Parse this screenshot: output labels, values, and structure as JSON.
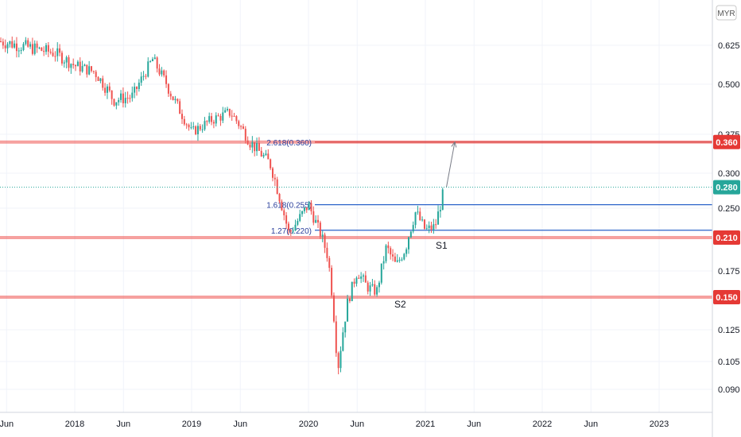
{
  "chart_data": {
    "type": "candlestick",
    "currency": "MYR",
    "x_axis_labels": [
      "Jun",
      "2018",
      "Jun",
      "2019",
      "Jun",
      "2020",
      "Jun",
      "2021",
      "Jun",
      "2022",
      "Jun",
      "2023"
    ],
    "y_axis_labels": [
      "0.625",
      "0.500",
      "0.375",
      "0.300",
      "0.250",
      "0.175",
      "0.125",
      "0.105",
      "0.090"
    ],
    "price_badges": [
      {
        "value": "0.360",
        "color": "#e53935"
      },
      {
        "value": "0.280",
        "color": "#26a69a"
      },
      {
        "value": "0.210",
        "color": "#e53935"
      },
      {
        "value": "0.150",
        "color": "#e53935"
      }
    ],
    "horizontal_levels": [
      {
        "value": 0.36,
        "kind": "resistance",
        "color": "#ef5350"
      },
      {
        "value": 0.21,
        "kind": "support",
        "color": "#ef5350"
      },
      {
        "value": 0.15,
        "kind": "support",
        "color": "#ef5350"
      }
    ],
    "fib_levels": [
      {
        "label": "2.618(0.360)",
        "value": 0.36
      },
      {
        "label": "1.618(0.255)",
        "value": 0.255
      },
      {
        "label": "1.27(0.220)",
        "value": 0.22
      }
    ],
    "last_price": 0.28,
    "annotations": [
      "S1",
      "S2"
    ],
    "close_path": [
      {
        "date": "2017-05",
        "close": 0.64
      },
      {
        "date": "2017-08",
        "close": 0.62
      },
      {
        "date": "2017-11",
        "close": 0.6
      },
      {
        "date": "2018-01",
        "close": 0.56
      },
      {
        "date": "2018-03",
        "close": 0.54
      },
      {
        "date": "2018-05",
        "close": 0.46
      },
      {
        "date": "2018-07",
        "close": 0.47
      },
      {
        "date": "2018-09",
        "close": 0.58
      },
      {
        "date": "2018-11",
        "close": 0.47
      },
      {
        "date": "2019-01",
        "close": 0.38
      },
      {
        "date": "2019-03",
        "close": 0.41
      },
      {
        "date": "2019-05",
        "close": 0.43
      },
      {
        "date": "2019-07",
        "close": 0.36
      },
      {
        "date": "2019-09",
        "close": 0.32
      },
      {
        "date": "2019-11",
        "close": 0.215
      },
      {
        "date": "2020-01",
        "close": 0.255
      },
      {
        "date": "2020-03",
        "close": 0.19
      },
      {
        "date": "2020-04",
        "close": 0.1
      },
      {
        "date": "2020-05",
        "close": 0.145
      },
      {
        "date": "2020-06",
        "close": 0.175
      },
      {
        "date": "2020-07",
        "close": 0.16
      },
      {
        "date": "2020-08",
        "close": 0.155
      },
      {
        "date": "2020-09",
        "close": 0.2
      },
      {
        "date": "2020-10",
        "close": 0.18
      },
      {
        "date": "2020-11",
        "close": 0.2
      },
      {
        "date": "2020-12",
        "close": 0.245
      },
      {
        "date": "2021-01",
        "close": 0.22
      },
      {
        "date": "2021-02",
        "close": 0.225
      },
      {
        "date": "2021-03",
        "close": 0.28
      }
    ],
    "projection": {
      "from": {
        "date": "2021-03",
        "value": 0.28
      },
      "to": {
        "date": "2021-05",
        "value": 0.36
      }
    }
  }
}
